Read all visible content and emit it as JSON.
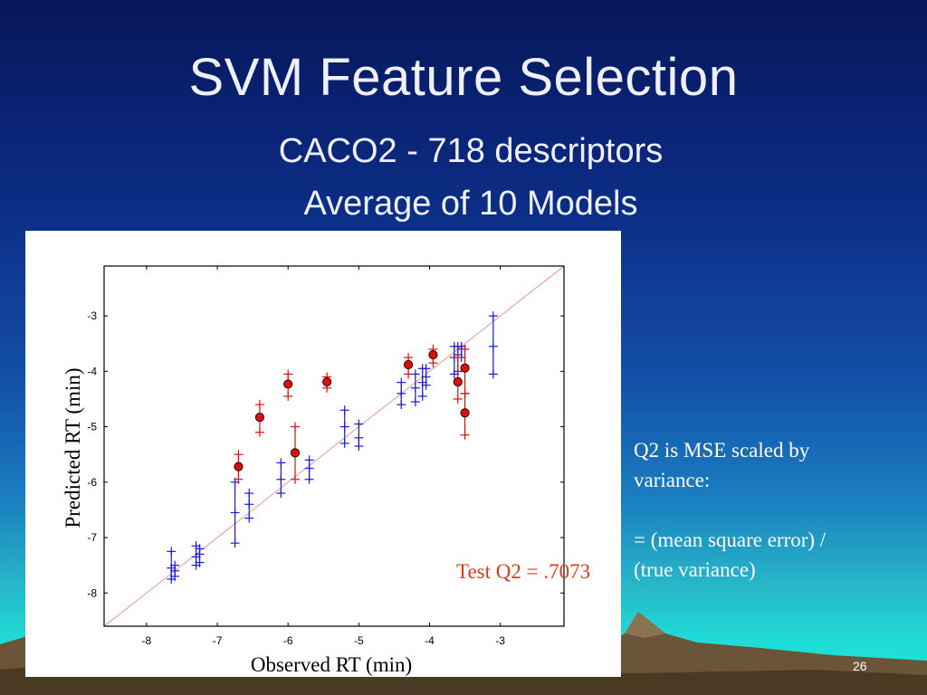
{
  "slide": {
    "title": "SVM  Feature Selection",
    "subtitle_line1": "CACO2 - 718 descriptors",
    "subtitle_line2": "Average of 10 Models",
    "note_lines": [
      "Q2 is MSE scaled by",
      "variance:",
      "",
      " =  (mean square error) /",
      "(true variance)"
    ],
    "slide_number": "26"
  },
  "colors": {
    "train": "#1a1ad8",
    "test": "#e01010",
    "identity_line": "#f08080",
    "annotation": "#e03a1a"
  },
  "chart_data": {
    "type": "scatter",
    "xlabel": "Observed RT (min)",
    "ylabel": "Predicted RT (min)",
    "xlim": [
      -8.6,
      -2.1
    ],
    "ylim": [
      -8.6,
      -2.1
    ],
    "xticks": [
      -8,
      -7,
      -6,
      -5,
      -4,
      -3
    ],
    "yticks": [
      -8,
      -7,
      -6,
      -5,
      -4,
      -3
    ],
    "grid": false,
    "identity_line": true,
    "annotation": "Test  Q2 = .7073",
    "series": [
      {
        "marker": "plus",
        "points": [
          {
            "x": -7.65,
            "y_min": -7.75,
            "y_max": -7.25,
            "y": -7.55
          },
          {
            "x": -7.6,
            "y_min": -7.7,
            "y_max": -7.5,
            "y": -7.6
          },
          {
            "x": -7.3,
            "y_min": -7.5,
            "y_max": -7.15,
            "y": -7.35
          },
          {
            "x": -7.25,
            "y_min": -7.45,
            "y_max": -7.2,
            "y": -7.3
          },
          {
            "x": -6.75,
            "y_min": -7.1,
            "y_max": -6.0,
            "y": -6.55
          },
          {
            "x": -6.55,
            "y_min": -6.65,
            "y_max": -6.2,
            "y": -6.4
          },
          {
            "x": -6.1,
            "y_min": -6.2,
            "y_max": -5.65,
            "y": -5.95
          },
          {
            "x": -5.7,
            "y_min": -5.95,
            "y_max": -5.6,
            "y": -5.75
          },
          {
            "x": -5.2,
            "y_min": -5.3,
            "y_max": -4.7,
            "y": -5.0
          },
          {
            "x": -5.0,
            "y_min": -5.35,
            "y_max": -4.95,
            "y": -5.2
          },
          {
            "x": -4.4,
            "y_min": -4.6,
            "y_max": -4.2,
            "y": -4.4
          },
          {
            "x": -4.2,
            "y_min": -4.55,
            "y_max": -4.05,
            "y": -4.3
          },
          {
            "x": -4.1,
            "y_min": -4.45,
            "y_max": -3.95,
            "y": -4.2
          },
          {
            "x": -4.05,
            "y_min": -4.25,
            "y_max": -3.95,
            "y": -4.1
          },
          {
            "x": -3.65,
            "y_min": -4.05,
            "y_max": -3.55,
            "y": -3.75
          },
          {
            "x": -3.6,
            "y_min": -4.0,
            "y_max": -3.55,
            "y": -3.7
          },
          {
            "x": -3.55,
            "y_min": -3.75,
            "y_max": -3.55,
            "y": -3.6
          },
          {
            "x": -3.1,
            "y_min": -4.05,
            "y_max": -3.0,
            "y": -3.55
          }
        ]
      },
      {
        "marker": "dot",
        "points": [
          {
            "x": -6.7,
            "y": -5.72,
            "y_min": -5.95,
            "y_max": -5.5
          },
          {
            "x": -6.4,
            "y": -4.83,
            "y_min": -5.1,
            "y_max": -4.6
          },
          {
            "x": -6.0,
            "y": -4.23,
            "y_min": -4.45,
            "y_max": -4.05
          },
          {
            "x": -5.9,
            "y": -5.47,
            "y_min": -5.95,
            "y_max": -5.0
          },
          {
            "x": -5.45,
            "y": -4.19,
            "y_min": -4.3,
            "y_max": -4.1
          },
          {
            "x": -4.3,
            "y": -3.88,
            "y_min": -4.05,
            "y_max": -3.75
          },
          {
            "x": -3.95,
            "y": -3.7,
            "y_min": -3.85,
            "y_max": -3.6
          },
          {
            "x": -3.6,
            "y": -4.19,
            "y_min": -4.5,
            "y_max": -3.75
          },
          {
            "x": -3.5,
            "y": -3.94,
            "y_min": -4.4,
            "y_max": -3.6
          },
          {
            "x": -3.5,
            "y": -4.75,
            "y_min": -5.15,
            "y_max": -4.4
          }
        ]
      }
    ]
  }
}
